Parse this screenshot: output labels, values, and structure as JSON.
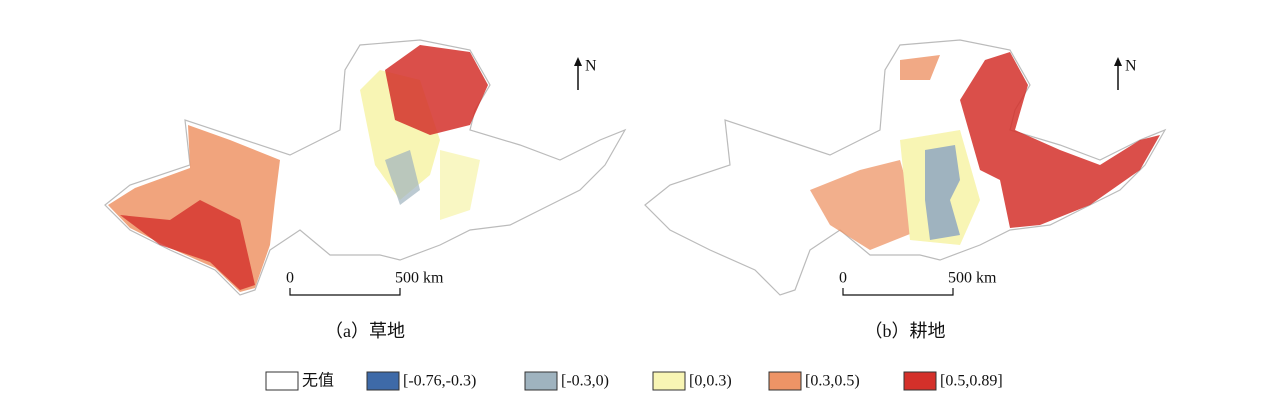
{
  "maps": [
    {
      "north": "N",
      "scale_labels": [
        "0",
        "500 km"
      ],
      "caption": "（a）草地"
    },
    {
      "north": "N",
      "scale_labels": [
        "0",
        "500 km"
      ],
      "caption": "（b）耕地"
    }
  ],
  "legend": [
    {
      "label": "无值",
      "color": "#ffffff"
    },
    {
      "label": "[-0.76,-0.3)",
      "color": "#3e6aa8"
    },
    {
      "label": "[-0.3,0)",
      "color": "#9fb3bf"
    },
    {
      "label": "[0,0.3)",
      "color": "#f8f5b4"
    },
    {
      "label": "[0.3,0.5)",
      "color": "#ee9466"
    },
    {
      "label": "[0.5,0.89]",
      "color": "#d4302a"
    }
  ]
}
